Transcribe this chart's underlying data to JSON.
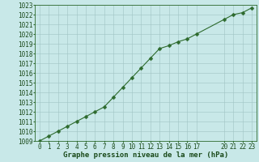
{
  "x": [
    0,
    1,
    2,
    3,
    4,
    5,
    6,
    7,
    8,
    9,
    10,
    11,
    12,
    13,
    14,
    15,
    16,
    17,
    20,
    21,
    22,
    23
  ],
  "y": [
    1009.0,
    1009.5,
    1010.0,
    1010.5,
    1011.0,
    1011.5,
    1012.0,
    1012.5,
    1013.5,
    1014.5,
    1015.5,
    1016.5,
    1017.5,
    1018.5,
    1018.8,
    1019.2,
    1019.5,
    1020.0,
    1021.5,
    1022.0,
    1022.2,
    1022.7
  ],
  "xlim": [
    -0.5,
    23.5
  ],
  "ylim": [
    1009,
    1023
  ],
  "yticks": [
    1009,
    1010,
    1011,
    1012,
    1013,
    1014,
    1015,
    1016,
    1017,
    1018,
    1019,
    1020,
    1021,
    1022,
    1023
  ],
  "xticks": [
    0,
    1,
    2,
    3,
    4,
    5,
    6,
    7,
    8,
    9,
    10,
    11,
    12,
    13,
    14,
    15,
    16,
    17,
    20,
    21,
    22,
    23
  ],
  "line_color": "#2d6a2d",
  "marker_color": "#2d6a2d",
  "bg_color": "#c8e8e8",
  "grid_color": "#a0c4c4",
  "xlabel": "Graphe pression niveau de la mer (hPa)",
  "xlabel_color": "#1a4a1a",
  "tick_color": "#1a4a1a",
  "border_color": "#2d6a2d",
  "xlabel_fontsize": 6.5,
  "tick_fontsize": 5.5,
  "linewidth": 0.8,
  "markersize": 2.5
}
